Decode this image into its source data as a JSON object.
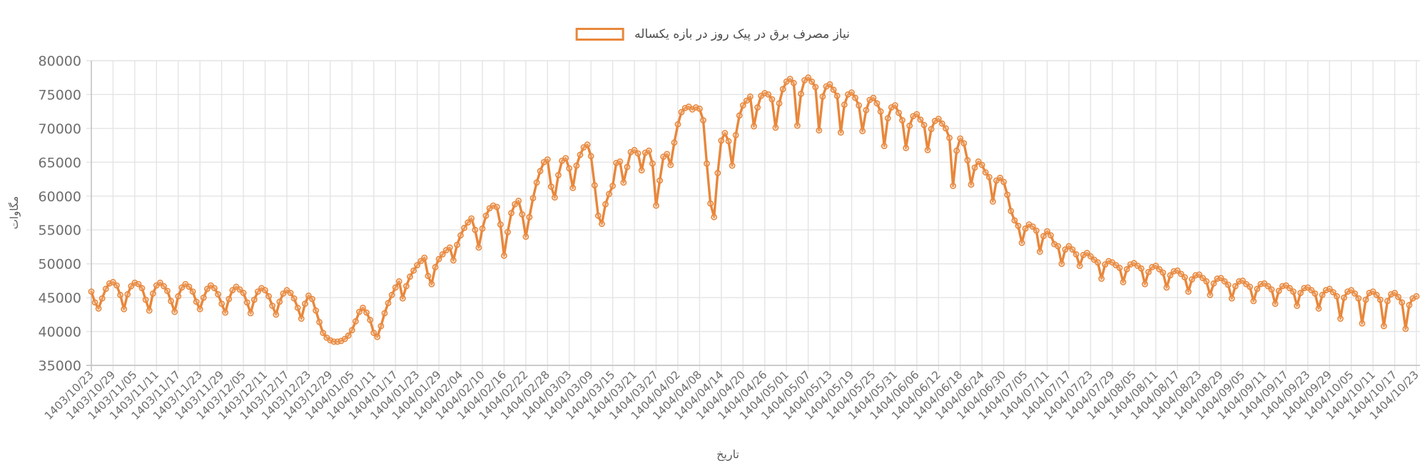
{
  "chart_data": {
    "type": "line",
    "legend_label": "نیاز مصرف برق در پیک روز در بازه یکساله",
    "y_axis_title": "مگاوات",
    "x_axis_title": "تاریخ",
    "y_ticks": [
      35000,
      40000,
      45000,
      50000,
      55000,
      60000,
      65000,
      70000,
      75000,
      80000
    ],
    "y_range": [
      35000,
      80000
    ],
    "grid": true,
    "legend_position": "top-center",
    "x_tick_interval_days": 6,
    "x_tick_labels": [
      "1403/10/23",
      "1403/10/29",
      "1403/11/05",
      "1403/11/11",
      "1403/11/17",
      "1403/11/23",
      "1403/11/29",
      "1403/12/05",
      "1403/12/11",
      "1403/12/17",
      "1403/12/23",
      "1403/12/29",
      "1404/01/05",
      "1404/01/11",
      "1404/01/17",
      "1404/01/23",
      "1404/01/29",
      "1404/02/04",
      "1404/02/10",
      "1404/02/16",
      "1404/02/22",
      "1404/02/28",
      "1404/03/03",
      "1404/03/09",
      "1404/03/15",
      "1404/03/21",
      "1404/03/27",
      "1404/04/02",
      "1404/04/08",
      "1404/04/14",
      "1404/04/20",
      "1404/04/26",
      "1404/05/01",
      "1404/05/07",
      "1404/05/13",
      "1404/05/19",
      "1404/05/25",
      "1404/05/31",
      "1404/06/06",
      "1404/06/12",
      "1404/06/18",
      "1404/06/24",
      "1404/06/30",
      "1404/07/05",
      "1404/07/11",
      "1404/07/17",
      "1404/07/23",
      "1404/07/29",
      "1404/08/05",
      "1404/08/11",
      "1404/08/17",
      "1404/08/23",
      "1404/08/29",
      "1404/09/05",
      "1404/09/11",
      "1404/09/17",
      "1404/09/23",
      "1404/09/29",
      "1404/10/05",
      "1404/10/11",
      "1404/10/17",
      "1404/10/23"
    ],
    "series": [
      {
        "name": "نیاز مصرف برق در پیک روز در بازه یکساله",
        "unit": "مگاوات",
        "start_date": "1403/10/23",
        "end_date": "1404/10/23",
        "frequency": "daily",
        "values": [
          45900,
          44300,
          43400,
          44900,
          46300,
          47100,
          47300,
          46800,
          45400,
          43300,
          45500,
          46700,
          47200,
          47000,
          46400,
          44700,
          43100,
          45600,
          46800,
          47200,
          46700,
          46000,
          44500,
          42900,
          45200,
          46500,
          47000,
          46600,
          45900,
          44400,
          43300,
          45000,
          46300,
          46800,
          46400,
          45500,
          44100,
          42800,
          44800,
          46100,
          46600,
          46200,
          45700,
          44300,
          42700,
          44700,
          45900,
          46400,
          46100,
          45200,
          43800,
          42500,
          44400,
          45600,
          46100,
          45700,
          44900,
          43500,
          41900,
          44100,
          45300,
          44800,
          43100,
          41400,
          39800,
          39100,
          38700,
          38500,
          38500,
          38600,
          38900,
          39400,
          40200,
          41500,
          42900,
          43500,
          42800,
          41700,
          39800,
          39200,
          40800,
          42700,
          44200,
          45400,
          46500,
          47400,
          44900,
          46700,
          48100,
          49000,
          49800,
          50400,
          50900,
          48200,
          47000,
          49500,
          50700,
          51400,
          52000,
          52400,
          50500,
          52800,
          54200,
          55300,
          56100,
          56700,
          55000,
          52400,
          55200,
          57100,
          58200,
          58600,
          58400,
          55800,
          51200,
          54700,
          57500,
          58800,
          59300,
          57300,
          54000,
          56900,
          59700,
          62000,
          63700,
          65000,
          65400,
          61400,
          59800,
          63100,
          65200,
          65600,
          64100,
          61200,
          64500,
          66100,
          67200,
          67600,
          65900,
          61600,
          57100,
          55900,
          58800,
          60300,
          61500,
          64900,
          65100,
          62000,
          64300,
          66500,
          66800,
          66300,
          63800,
          66400,
          66700,
          64800,
          58600,
          62300,
          65800,
          66200,
          64600,
          67900,
          70600,
          72400,
          73000,
          73200,
          72800,
          73100,
          72900,
          71200,
          64800,
          58900,
          56900,
          63400,
          68200,
          69300,
          68100,
          64500,
          69000,
          71900,
          73400,
          74100,
          74700,
          70300,
          73100,
          74800,
          75200,
          75000,
          74300,
          70100,
          73700,
          75800,
          76900,
          77300,
          76700,
          70400,
          75100,
          77100,
          77500,
          76900,
          76100,
          69700,
          74700,
          76200,
          76500,
          75700,
          74800,
          69400,
          73500,
          75000,
          75300,
          74500,
          73400,
          69600,
          72700,
          74200,
          74500,
          73700,
          72500,
          67400,
          71500,
          73100,
          73400,
          72300,
          71200,
          67100,
          70400,
          71800,
          72100,
          71300,
          70500,
          66800,
          69900,
          71100,
          71400,
          70700,
          70000,
          68600,
          61500,
          66700,
          68500,
          67800,
          65300,
          61700,
          64200,
          65100,
          64600,
          63500,
          62800,
          59200,
          62300,
          62700,
          62100,
          60200,
          57800,
          56400,
          55600,
          53100,
          55200,
          55800,
          55500,
          54900,
          51800,
          54100,
          54800,
          54200,
          52900,
          52600,
          50000,
          52100,
          52600,
          52100,
          51400,
          49700,
          51300,
          51600,
          51100,
          50600,
          50200,
          47800,
          49900,
          50400,
          50200,
          49800,
          49400,
          47300,
          49200,
          49900,
          50100,
          49700,
          49300,
          47000,
          48800,
          49500,
          49700,
          49200,
          48700,
          46500,
          48300,
          48900,
          49000,
          48500,
          48000,
          45900,
          47700,
          48300,
          48400,
          47900,
          47400,
          45400,
          47100,
          47800,
          47900,
          47400,
          46900,
          44900,
          46700,
          47400,
          47500,
          47000,
          46600,
          44500,
          46300,
          47000,
          47100,
          46700,
          46200,
          44100,
          46000,
          46700,
          46800,
          46400,
          45900,
          43800,
          45700,
          46400,
          46500,
          46100,
          45600,
          43400,
          45400,
          46100,
          46300,
          45800,
          45200,
          41900,
          45000,
          45900,
          46100,
          45600,
          44900,
          41200,
          44700,
          45700,
          45900,
          45400,
          44700,
          40800,
          44500,
          45500,
          45700,
          45100,
          44300,
          40400,
          43900,
          44900,
          45200
        ]
      }
    ],
    "line_color": "#e8873b",
    "marker_style": "open-circle",
    "grid_color": "#e4e4e4",
    "axis_line_color": "#c4c4c4",
    "tick_label_color": "#6e6e6e",
    "legend_text_color": "#4b4b4b"
  }
}
